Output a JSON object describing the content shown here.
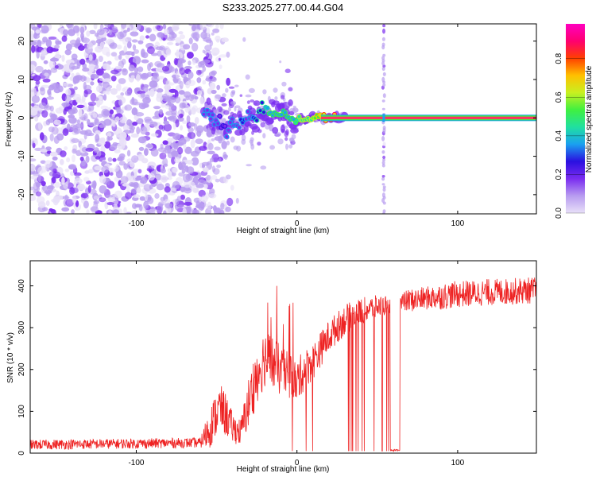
{
  "title": "S233.2025.277.00.44.G04",
  "colors": {
    "snr_line": "#ee2222",
    "axis": "#000000",
    "colormap": [
      "#e8e0f8",
      "#b89cf0",
      "#7a2cf0",
      "#2a10e0",
      "#1aa0f0",
      "#20e0a0",
      "#40f040",
      "#c8f020",
      "#ffc000",
      "#ff4000",
      "#ff0070",
      "#ff00c0"
    ]
  },
  "chart_data": [
    {
      "type": "heatmap",
      "title": "S233.2025.277.00.44.G04",
      "xlabel": "Height of straight line (km)",
      "ylabel": "Frequency (Hz)",
      "xlim": [
        -166,
        149
      ],
      "ylim": [
        -25,
        24.5
      ],
      "xticks": [
        -100,
        0,
        100
      ],
      "xtick_labels": [
        "-100",
        "0",
        "100"
      ],
      "yticks": [
        -20,
        -10,
        0,
        10,
        20
      ],
      "ytick_labels": [
        "-20",
        "-10",
        "0",
        "10",
        "20"
      ],
      "noise_region_x": [
        -166,
        -58
      ],
      "vertical_streak_x": 54,
      "ridge": {
        "x": [
          -58,
          -52,
          -46,
          -42,
          -38,
          -34,
          -30,
          -26,
          -22,
          -18,
          -14,
          -10,
          -6,
          -2,
          2,
          6,
          10,
          15,
          20,
          30,
          40,
          54,
          70,
          90,
          110,
          149
        ],
        "y": [
          2,
          0,
          -2,
          -3,
          -1,
          -2,
          1,
          -1,
          3,
          2,
          1,
          1,
          0.5,
          -0.5,
          0,
          -0.5,
          0,
          0.3,
          0,
          0,
          0,
          0,
          0,
          0,
          0,
          0
        ],
        "amp": [
          0.3,
          0.3,
          0.25,
          0.3,
          0.3,
          0.35,
          0.3,
          0.35,
          0.4,
          0.45,
          0.45,
          0.5,
          0.5,
          0.5,
          0.55,
          0.55,
          0.6,
          0.7,
          0.8,
          0.85,
          0.9,
          0.9,
          0.9,
          0.9,
          0.9,
          0.9
        ]
      }
    },
    {
      "type": "colorbar",
      "label": "Normalized spectral amplitude",
      "range": [
        0,
        0.98
      ],
      "ticks": [
        0.0,
        0.2,
        0.4,
        0.6,
        0.8
      ],
      "tick_labels": [
        "0.0",
        "0.2",
        "0.4",
        "0.6",
        "0.8"
      ]
    },
    {
      "type": "line",
      "xlabel": "Height of straight line (km)",
      "ylabel": "SNR (10 * v/v)",
      "xlim": [
        -166,
        149
      ],
      "ylim": [
        0,
        460
      ],
      "xticks": [
        -100,
        0,
        100
      ],
      "xtick_labels": [
        "-100",
        "0",
        "100"
      ],
      "yticks": [
        0,
        100,
        200,
        300,
        400
      ],
      "ytick_labels": [
        "0",
        "100",
        "200",
        "300",
        "400"
      ],
      "envelope": {
        "x": [
          -166,
          -60,
          -55,
          -48,
          -44,
          -40,
          -35,
          -30,
          -25,
          -20,
          -15,
          -10,
          -5,
          0,
          5,
          10,
          20,
          30,
          40,
          50,
          55,
          60,
          65,
          70,
          80,
          90,
          100,
          110,
          120,
          130,
          140,
          149
        ],
        "mean": [
          20,
          25,
          55,
          110,
          90,
          60,
          50,
          120,
          190,
          230,
          215,
          195,
          185,
          175,
          200,
          220,
          280,
          320,
          340,
          350,
          355,
          355,
          360,
          365,
          370,
          375,
          380,
          382,
          385,
          386,
          388,
          390
        ],
        "spread": [
          15,
          15,
          60,
          70,
          65,
          45,
          40,
          80,
          90,
          90,
          85,
          75,
          70,
          65,
          60,
          55,
          50,
          45,
          40,
          35,
          30,
          30,
          30,
          35,
          35,
          40,
          40,
          40,
          40,
          40,
          40,
          40
        ]
      },
      "dropout_x_range": [
        -5,
        62
      ],
      "dropout_value": 5
    }
  ]
}
